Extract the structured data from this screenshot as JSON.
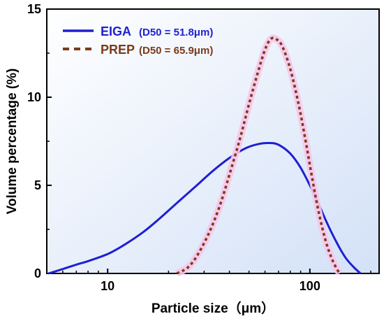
{
  "chart_data": {
    "type": "line",
    "xlabel": "Particle size（μm）",
    "ylabel": "Volume percentage (%)",
    "xscale": "log",
    "xlim": [
      5,
      220
    ],
    "ylim": [
      0,
      15
    ],
    "x_ticks": [
      10,
      100
    ],
    "x_tick_labels": [
      "10",
      "100"
    ],
    "y_ticks": [
      0,
      5,
      10,
      15
    ],
    "y_tick_labels": [
      "0",
      "5",
      "10",
      "15"
    ],
    "grid": false,
    "legend_position": "top-left",
    "series": [
      {
        "name": "EIGA",
        "d50_label": "(D50 = 51.8μm)",
        "color": "#1f1fd1",
        "style": "solid",
        "points": [
          [
            5.1,
            0
          ],
          [
            6,
            0.25
          ],
          [
            7,
            0.5
          ],
          [
            8,
            0.7
          ],
          [
            10,
            1.1
          ],
          [
            12,
            1.6
          ],
          [
            15,
            2.35
          ],
          [
            18,
            3.1
          ],
          [
            22,
            4.0
          ],
          [
            27,
            4.9
          ],
          [
            33,
            5.8
          ],
          [
            40,
            6.55
          ],
          [
            48,
            7.1
          ],
          [
            56,
            7.35
          ],
          [
            63,
            7.4
          ],
          [
            70,
            7.3
          ],
          [
            80,
            6.8
          ],
          [
            90,
            6.0
          ],
          [
            100,
            5.0
          ],
          [
            110,
            4.0
          ],
          [
            120,
            3.0
          ],
          [
            135,
            1.8
          ],
          [
            150,
            0.9
          ],
          [
            165,
            0.35
          ],
          [
            178,
            0
          ]
        ]
      },
      {
        "name": "PREP",
        "d50_label": "(D50 = 65.9μm)",
        "color": "#7a3b1a",
        "style": "dotted",
        "points": [
          [
            22,
            0
          ],
          [
            25,
            0.35
          ],
          [
            28,
            1.1
          ],
          [
            32,
            2.4
          ],
          [
            36,
            3.9
          ],
          [
            40,
            5.6
          ],
          [
            45,
            7.6
          ],
          [
            50,
            9.6
          ],
          [
            55,
            11.3
          ],
          [
            60,
            12.7
          ],
          [
            64,
            13.3
          ],
          [
            68,
            13.3
          ],
          [
            73,
            12.9
          ],
          [
            80,
            11.6
          ],
          [
            88,
            9.6
          ],
          [
            95,
            7.6
          ],
          [
            102,
            5.6
          ],
          [
            110,
            3.6
          ],
          [
            120,
            1.8
          ],
          [
            130,
            0.7
          ],
          [
            140,
            0
          ]
        ]
      }
    ]
  }
}
